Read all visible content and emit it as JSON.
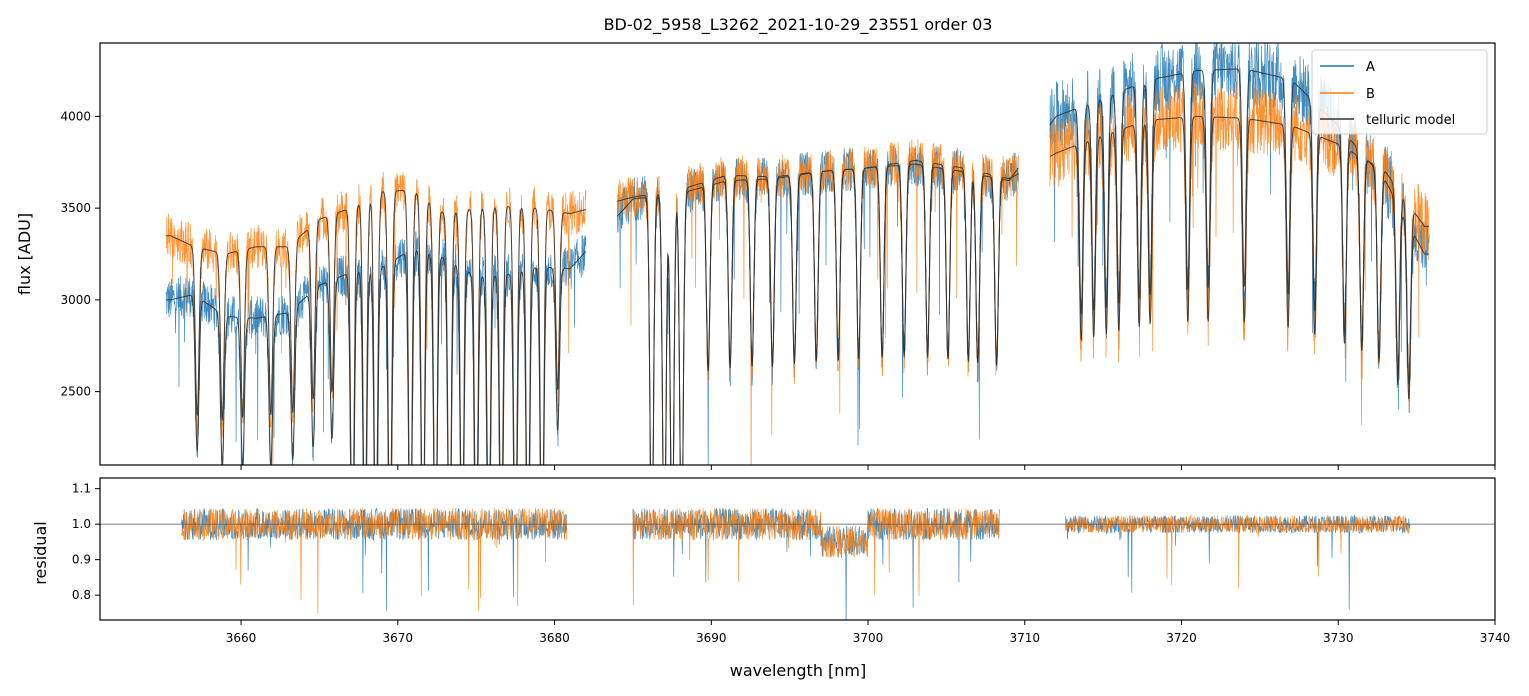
{
  "chart_data": [
    {
      "type": "line",
      "panel": "flux",
      "title": "BD-02_5958_L3262_2021-10-29_23551  order 03",
      "xlabel": "",
      "ylabel": "flux [ADU]",
      "xlim": [
        3651,
        3740
      ],
      "ylim": [
        2100,
        4400
      ],
      "yticks": [
        2500,
        3000,
        3500,
        4000
      ],
      "ytick_labels": [
        "2500",
        "3000",
        "3500",
        "4000"
      ],
      "xticks": [
        3660,
        3670,
        3680,
        3690,
        3700,
        3710,
        3720,
        3730,
        3740
      ],
      "grid": false,
      "legend": {
        "placement": "top-right",
        "entries": [
          "A",
          "B",
          "telluric model"
        ]
      },
      "segments": [
        [
          3655.2,
          3682.0
        ],
        [
          3684.0,
          3709.6
        ],
        [
          3711.6,
          3735.8
        ]
      ],
      "series": [
        {
          "name": "A",
          "color": "#1f77b4",
          "x": [
            3655.5,
            3657,
            3659,
            3661,
            3663,
            3665,
            3667,
            3669,
            3671,
            3673,
            3675,
            3677,
            3679,
            3681,
            3685,
            3688,
            3691,
            3694,
            3697,
            3700,
            3703,
            3706,
            3709,
            3712,
            3715,
            3718,
            3721,
            3724,
            3727,
            3730,
            3733,
            3735.5
          ],
          "values": [
            3000,
            3030,
            2910,
            2900,
            2930,
            3080,
            3150,
            3180,
            3280,
            3230,
            3130,
            3140,
            3180,
            3170,
            3550,
            3580,
            3650,
            3660,
            3700,
            3720,
            3740,
            3700,
            3650,
            4000,
            4100,
            4200,
            4250,
            4260,
            4200,
            3950,
            3650,
            3250
          ]
        },
        {
          "name": "B",
          "color": "#ff7f0e",
          "x": [
            3655.5,
            3657,
            3659,
            3661,
            3663,
            3665,
            3667,
            3669,
            3671,
            3673,
            3675,
            3677,
            3679,
            3681,
            3685,
            3688,
            3691,
            3694,
            3697,
            3700,
            3703,
            3706,
            3709,
            3712,
            3715,
            3718,
            3721,
            3724,
            3727,
            3730,
            3733,
            3735.5
          ],
          "values": [
            3350,
            3290,
            3250,
            3290,
            3290,
            3440,
            3500,
            3590,
            3600,
            3470,
            3500,
            3510,
            3500,
            3470,
            3560,
            3600,
            3680,
            3670,
            3700,
            3720,
            3760,
            3720,
            3660,
            3800,
            3900,
            3980,
            4000,
            3990,
            3950,
            3850,
            3700,
            3400
          ]
        },
        {
          "name": "telluric model",
          "color": "#333333",
          "x": [
            3655.5,
            3657,
            3659,
            3661,
            3663,
            3665,
            3667,
            3669,
            3671,
            3673,
            3675,
            3677,
            3679,
            3681,
            3685,
            3688,
            3691,
            3694,
            3697,
            3700,
            3703,
            3706,
            3709,
            3712,
            3715,
            3718,
            3721,
            3724,
            3727,
            3730,
            3733,
            3735.5
          ],
          "values": [
            3370,
            3280,
            3260,
            3280,
            3300,
            3450,
            3510,
            3600,
            3590,
            3480,
            3490,
            3500,
            3490,
            3460,
            3580,
            3630,
            3680,
            3680,
            3700,
            3720,
            3740,
            3720,
            3650,
            3850,
            4100,
            4200,
            4250,
            4250,
            4180,
            3950,
            3700,
            3350
          ]
        }
      ]
    },
    {
      "type": "line",
      "panel": "residual",
      "xlabel": "wavelength [nm]",
      "ylabel": "residual",
      "xlim": [
        3651,
        3740
      ],
      "ylim": [
        0.73,
        1.13
      ],
      "yticks": [
        0.8,
        0.9,
        1.0,
        1.1
      ],
      "ytick_labels": [
        "0.8",
        "0.9",
        "1.0",
        "1.1"
      ],
      "xticks": [
        3660,
        3670,
        3680,
        3690,
        3700,
        3710,
        3720,
        3730,
        3740
      ],
      "xtick_labels": [
        "3660",
        "3670",
        "3680",
        "3690",
        "3700",
        "3710",
        "3720",
        "3730",
        "3740"
      ],
      "reference_line": 1.0,
      "segments": [
        [
          3656.2,
          3680.8
        ],
        [
          3685.0,
          3708.4
        ],
        [
          3712.6,
          3734.6
        ]
      ],
      "series": [
        {
          "name": "A",
          "color": "#1f77b4",
          "mean": 1.0
        },
        {
          "name": "B",
          "color": "#ff7f0e",
          "mean": 1.0
        }
      ]
    }
  ],
  "colors": {
    "A": "#1f77b4",
    "B": "#ff7f0e",
    "model": "#333333"
  }
}
